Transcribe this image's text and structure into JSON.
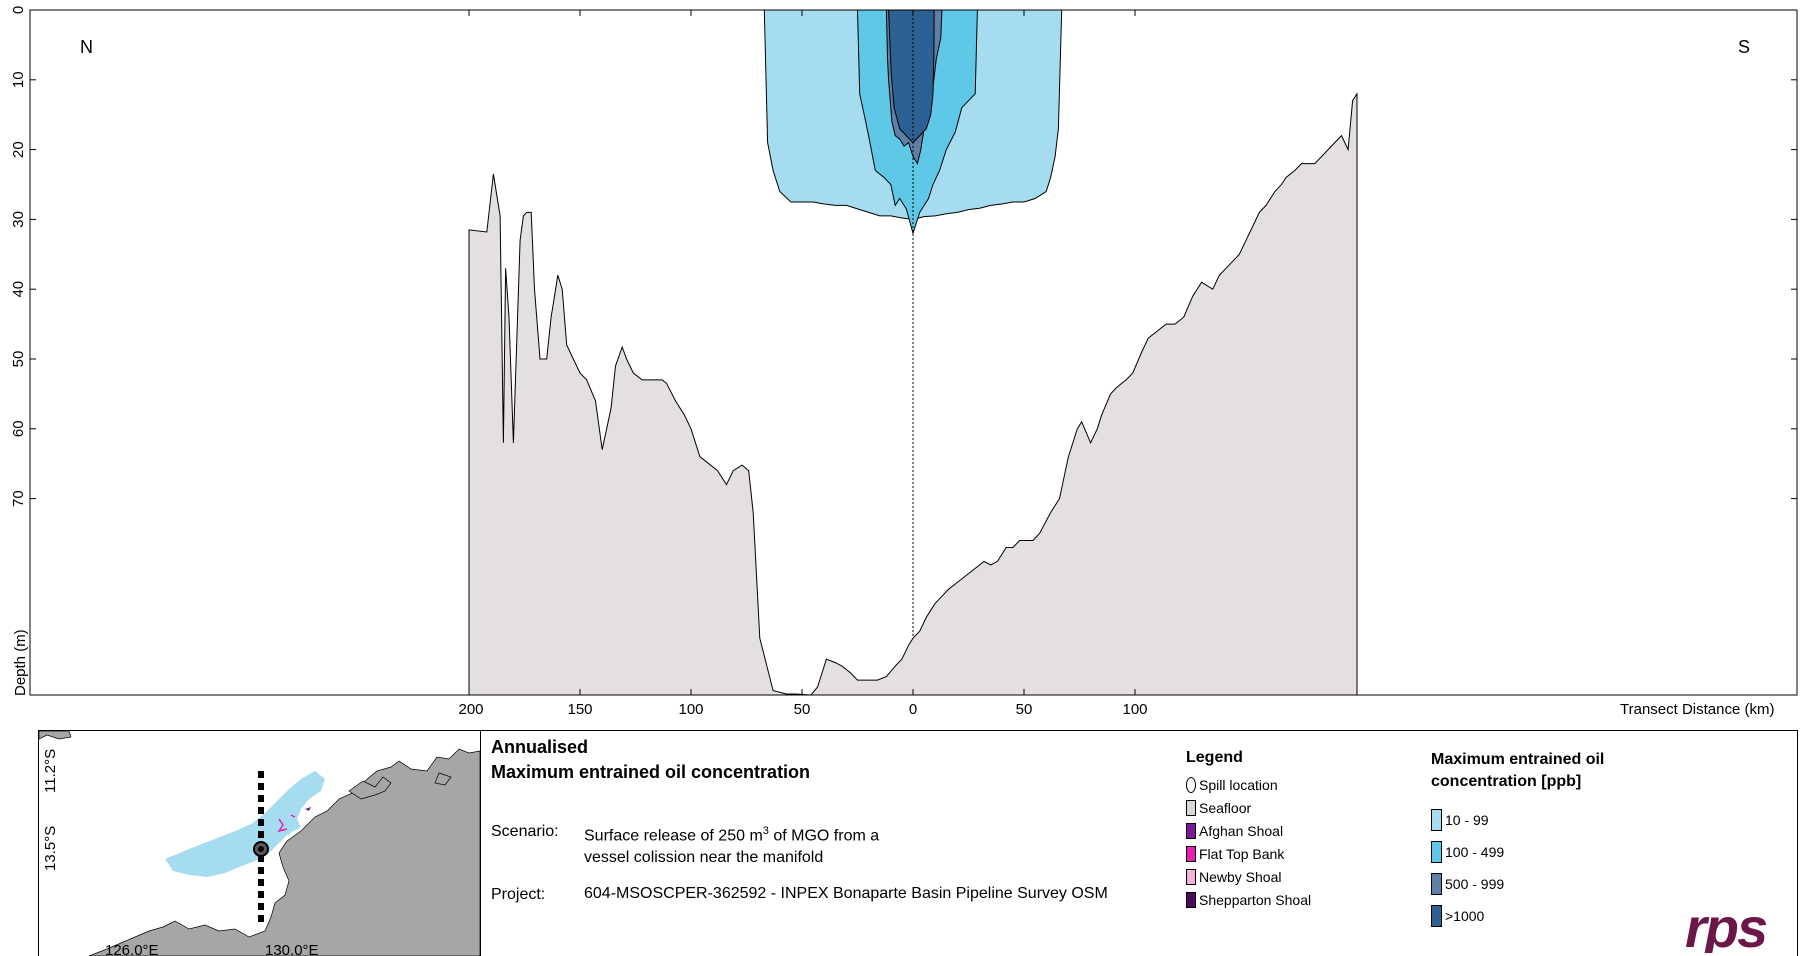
{
  "chart_data": {
    "type": "area",
    "title": "",
    "xlabel": "Transect Distance (km)",
    "ylabel": "Depth (m)",
    "x_ticks": [
      "200",
      "150",
      "100",
      "50",
      "0",
      "50",
      "100"
    ],
    "y_ticks": [
      "0",
      "10",
      "20",
      "30",
      "40",
      "50",
      "60",
      "70"
    ],
    "direction_left": "N",
    "direction_right": "S",
    "seafloor": {
      "x": [
        -200,
        -192,
        -189,
        -186,
        -184.5,
        -183.5,
        -182,
        -180,
        -177,
        -175.5,
        -174,
        -172,
        -170.5,
        -168,
        -165,
        -163,
        -162,
        -161,
        -160,
        -158,
        -156,
        -153,
        -150,
        -147,
        -143,
        -140,
        -136,
        -134,
        -131,
        -129,
        -126,
        -122,
        -117,
        -113,
        -111,
        -107,
        -103,
        -100,
        -96,
        -92,
        -88,
        -84,
        -81,
        -77,
        -74,
        -72,
        -69,
        -63,
        -57,
        -53,
        -46,
        -43,
        -39,
        -35,
        -32,
        -28,
        -25,
        -22,
        -20,
        -16,
        -12,
        -8,
        -5,
        -2,
        0,
        3,
        6,
        10,
        13,
        16,
        20,
        24,
        28,
        32,
        35,
        38,
        42,
        45,
        48,
        51,
        54,
        57,
        62,
        66,
        70,
        74,
        76,
        80,
        83,
        85,
        89,
        92,
        96,
        99,
        103,
        106,
        110,
        114,
        118,
        122,
        126,
        130,
        135,
        138,
        141,
        144,
        147,
        150,
        153,
        156,
        159,
        163,
        166,
        168,
        172,
        175,
        178,
        181,
        184,
        187,
        190,
        193,
        196,
        198,
        200
      ],
      "y": [
        31.5,
        31.8,
        23.5,
        29.5,
        62,
        37,
        44,
        62,
        33,
        29.5,
        29,
        29,
        40,
        50,
        50,
        44,
        42,
        40,
        38,
        40,
        48,
        50,
        52,
        53,
        56,
        63,
        57,
        51,
        48.3,
        50,
        52,
        53,
        53,
        53,
        53.5,
        56,
        58,
        60,
        64,
        65,
        66,
        68,
        66,
        65.2,
        66,
        72,
        90,
        97.5,
        98,
        98,
        100,
        97,
        93,
        93.5,
        94,
        95,
        96,
        96,
        96,
        96,
        95.5,
        94,
        93,
        91,
        90,
        89,
        87,
        85,
        84,
        83,
        82,
        81,
        80,
        79,
        79.5,
        79,
        77,
        77,
        76,
        76,
        76,
        75,
        72,
        70,
        64,
        60,
        59,
        62,
        60,
        58,
        55,
        54,
        53,
        52,
        49,
        47,
        46,
        45,
        45,
        44,
        41,
        39,
        40,
        38,
        37,
        36,
        35,
        33,
        31,
        29,
        28,
        26,
        25,
        24,
        23,
        22,
        22,
        22,
        21,
        20,
        19,
        18,
        20,
        13,
        12
      ]
    },
    "depth_max_plotted": 98,
    "spill_x": 0,
    "concentration_bands": [
      {
        "name": "10 - 99",
        "color": "#a5dcef",
        "x": [
          -67,
          -65.5,
          -63,
          -60,
          -55,
          -50,
          -45,
          -40,
          -35,
          -30,
          -25,
          -20,
          -15,
          -10,
          -5,
          0,
          5,
          10,
          15,
          20,
          25,
          30,
          35,
          40,
          45,
          50,
          55,
          60,
          62,
          64,
          65.5,
          67
        ],
        "y": [
          0,
          19,
          23,
          26,
          27.5,
          27.5,
          27.5,
          27.8,
          28,
          28,
          28.5,
          29,
          29.5,
          29.5,
          29.8,
          30,
          29.6,
          29.5,
          29.2,
          29,
          28.6,
          28.4,
          28,
          27.8,
          27.5,
          27.5,
          27,
          26,
          24,
          21,
          17,
          0
        ]
      },
      {
        "name": "100 - 499",
        "color": "#5ec8e6",
        "x": [
          -25,
          -24,
          -22,
          -20,
          -17,
          -13,
          -10,
          -8,
          -6,
          -3,
          0,
          3,
          5,
          7,
          9,
          12,
          15,
          19,
          22,
          25,
          28,
          29
        ],
        "y": [
          0,
          12,
          15,
          18,
          23,
          24,
          25,
          28,
          27,
          28.5,
          32,
          29,
          28,
          27,
          25,
          23,
          20,
          17.5,
          14,
          13,
          12,
          0
        ]
      },
      {
        "name": "500 - 999",
        "color": "#5d7fa8",
        "x": [
          -12,
          -11.5,
          -11,
          -9.5,
          -8,
          -6,
          -4,
          -2,
          0,
          2,
          3.5,
          5,
          6.5,
          8,
          9,
          10.5,
          12.5,
          13
        ],
        "y": [
          0,
          7,
          10,
          16,
          18,
          18.5,
          19.5,
          19,
          21,
          22,
          20,
          17,
          15,
          14,
          11,
          7,
          4,
          0
        ]
      },
      {
        "name": ">1000",
        "color": "#2d6193",
        "x": [
          -11,
          -10.5,
          -9.8,
          -8.5,
          -6,
          -3,
          0,
          3,
          6,
          8,
          9,
          9.4,
          9.5
        ],
        "y": [
          0,
          4,
          9,
          14,
          17,
          18,
          19,
          18,
          17,
          15,
          12,
          6,
          0
        ]
      }
    ]
  },
  "panel": {
    "title_line1": "Annualised",
    "title_line2": "Maximum entrained oil concentration",
    "scenario_label": "Scenario:",
    "scenario_text_a": "Surface release of 250 m",
    "scenario_superscript": "3",
    "scenario_text_b": " of MGO from a",
    "scenario_line2": "vessel colission near the manifold",
    "project_label": "Project:",
    "project_text": "604-MSOSCPER-362592 - INPEX Bonaparte Basin Pipeline Survey OSM"
  },
  "legend": {
    "heading": "Legend",
    "items": [
      {
        "label": "Spill location",
        "shape": "oval",
        "color": "#ffffff"
      },
      {
        "label": "Seafloor",
        "shape": "box",
        "color": "#d9d9d9"
      },
      {
        "label": "Afghan Shoal",
        "shape": "box",
        "color": "#7a1a9a"
      },
      {
        "label": "Flat Top Bank",
        "shape": "box",
        "color": "#e61eb4"
      },
      {
        "label": "Newby Shoal",
        "shape": "box",
        "color": "#f2b4dc"
      },
      {
        "label": "Shepparton Shoal",
        "shape": "box",
        "color": "#4b0a5a"
      }
    ]
  },
  "concentration_legend": {
    "heading_line1": "Maximum entrained oil",
    "heading_line2": "concentration [ppb]",
    "items": [
      {
        "label": "10 - 99",
        "color": "#a5dcef"
      },
      {
        "label": "100 - 499",
        "color": "#5ec8e6"
      },
      {
        "label": "500 - 999",
        "color": "#5d7fa8"
      },
      {
        "label": ">1000",
        "color": "#2d6193"
      }
    ]
  },
  "map": {
    "lat_labels": [
      "11.2°S",
      "13.5°S"
    ],
    "lon_labels": [
      "126.0°E",
      "130.0°E"
    ]
  },
  "logo": {
    "text": "rps",
    "color": "#6b1848"
  }
}
